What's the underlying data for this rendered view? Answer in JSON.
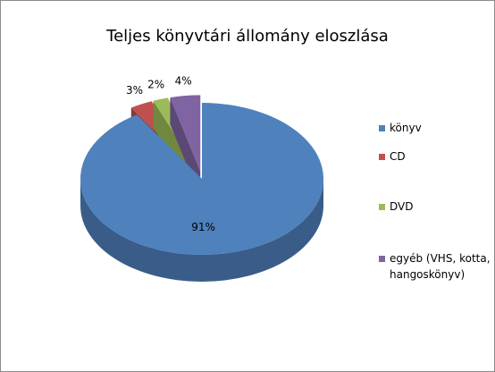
{
  "chart_data": {
    "type": "pie",
    "title": "Teljes könyvtári állomány eloszlása",
    "categories": [
      "könyv",
      "CD",
      "DVD",
      "egyéb (VHS, kotta, hangoskönyv)"
    ],
    "values": [
      91,
      3,
      2,
      4
    ],
    "value_labels": [
      "91%",
      "3%",
      "2%",
      "4%"
    ],
    "colors": [
      "#4f81bd",
      "#c0504d",
      "#9bbb59",
      "#8064a2"
    ],
    "legend": "right"
  }
}
